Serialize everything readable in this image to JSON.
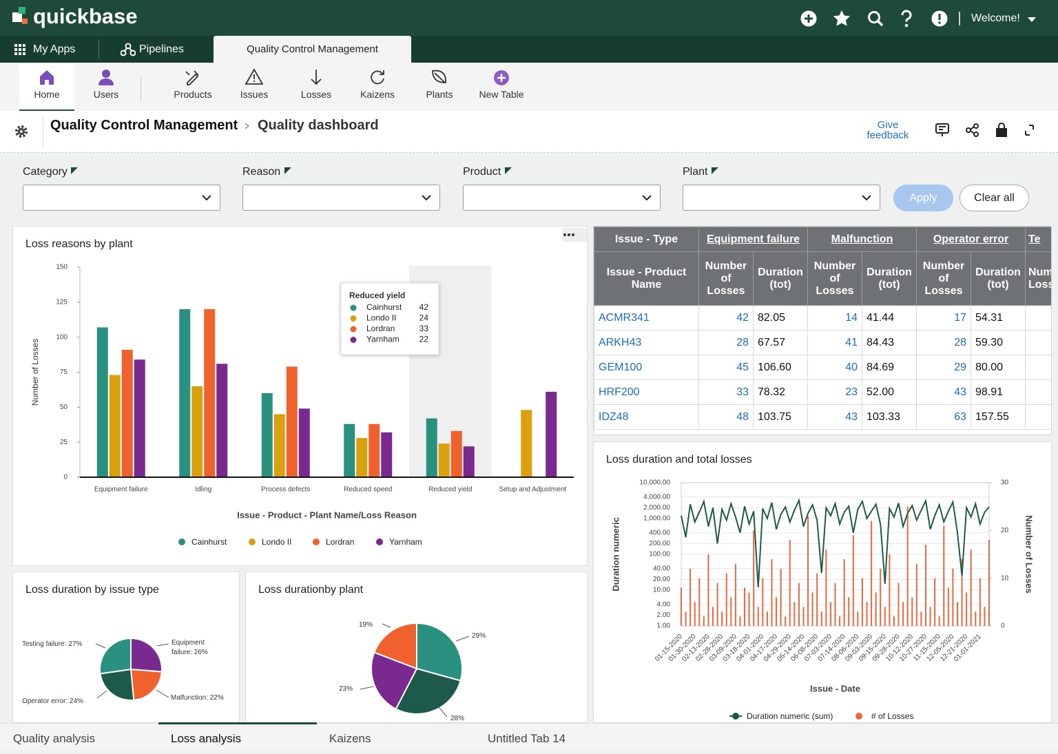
{
  "header": {
    "logo": "quickbase",
    "welcome": "Welcome!"
  },
  "nav": {
    "tabs": [
      "My Apps",
      "Pipelines",
      "Quality Control Management"
    ]
  },
  "toolbar": {
    "items": [
      "Home",
      "Users",
      "Products",
      "Issues",
      "Losses",
      "Kaizens",
      "Plants",
      "New Table"
    ]
  },
  "breadcrumb": {
    "app": "Quality Control Management",
    "page": "Quality dashboard",
    "feedback": "Give feedback"
  },
  "filters": {
    "labels": [
      "Category",
      "Reason",
      "Product",
      "Plant"
    ],
    "apply": "Apply",
    "clear": "Clear all"
  },
  "table": {
    "type_header": "Issue - Type",
    "types": [
      "Equipment failure",
      "Malfunction",
      "Operator error",
      "Te"
    ],
    "product_header": "Issue - Product Name",
    "metric_headers": [
      "Number of Losses",
      "Duration (tot)"
    ],
    "rows": [
      [
        "ACMR341",
        "42",
        "82.05",
        "14",
        "41.44",
        "17",
        "54.31"
      ],
      [
        "ARKH43",
        "28",
        "67.57",
        "41",
        "84.43",
        "28",
        "59.30"
      ],
      [
        "GEM100",
        "45",
        "106.60",
        "40",
        "84.69",
        "29",
        "80.00"
      ],
      [
        "HRF200",
        "33",
        "78.32",
        "23",
        "52.00",
        "43",
        "98.91"
      ],
      [
        "IDZ48",
        "48",
        "103.75",
        "43",
        "103.33",
        "63",
        "157.55"
      ]
    ]
  },
  "chart_data": [
    {
      "type": "bar",
      "title": "Loss reasons by plant",
      "x_label": "Issue - Product - Plant Name/Loss Reason",
      "y_label": "Number of Losses",
      "categories": [
        "Equipment failure",
        "Idling",
        "Process defects",
        "Reduced speed",
        "Reduced yield",
        "Setup and Adjustment"
      ],
      "series": [
        {
          "name": "Cainhurst",
          "color": "#2a9080",
          "values": [
            107,
            120,
            60,
            38,
            42,
            null
          ]
        },
        {
          "name": "Londo II",
          "color": "#d9a10e",
          "values": [
            73,
            65,
            45,
            28,
            24,
            48
          ]
        },
        {
          "name": "Lordran",
          "color": "#f0622d",
          "values": [
            91,
            120,
            79,
            38,
            33,
            null
          ]
        },
        {
          "name": "Yarnham",
          "color": "#7a2a8e",
          "values": [
            84,
            81,
            49,
            32,
            22,
            61
          ]
        }
      ],
      "ylim": [
        0,
        150
      ],
      "yticks": [
        0,
        25,
        50,
        75,
        100,
        125,
        150
      ],
      "grid": false
    },
    {
      "type": "pie",
      "title": "Loss duration by issue type",
      "values": [
        26,
        22,
        24,
        27
      ],
      "value_labels": [
        "Equipment failure: 26%",
        "Malfunction: 22%",
        "Operator error: 24%",
        "Testing failure: 27%"
      ],
      "colors": [
        "#7a2a8e",
        "#f0622d",
        "#1e5a4c",
        "#2a9080"
      ]
    },
    {
      "type": "pie",
      "title": "Loss durationby plant",
      "values": [
        29,
        28,
        23,
        19
      ],
      "value_labels": [
        "29%",
        "28%",
        "23%",
        "19%"
      ],
      "colors": [
        "#2a9080",
        "#1e5a4c",
        "#7a2a8e",
        "#f0622d"
      ]
    },
    {
      "type": "line",
      "title": "Loss duration and total losses",
      "x_label": "Issue - Date",
      "y_label": "Duration numeric",
      "y2_label": "Number of Losses",
      "categories": [
        "01-15-2020",
        null,
        null,
        "01-30-2020",
        null,
        null,
        "02-13-2020",
        null,
        null,
        "02-28-2020",
        null,
        null,
        "03-09-2020",
        null,
        null,
        "03-18-2020",
        null,
        null,
        "04-01-2020",
        null,
        null,
        "04-17-2020",
        null,
        null,
        "04-29-2020",
        null,
        null,
        "05-14-2020",
        null,
        null,
        "06-08-2020",
        null,
        null,
        "07-03-2020",
        null,
        null,
        "07-14-2020",
        null,
        null,
        "08-06-2020",
        null,
        null,
        "09-03-2020",
        null,
        null,
        "09-15-2020",
        null,
        null,
        "09-28-2020",
        null,
        null,
        "10-12-2020",
        null,
        null,
        "10-27-2020",
        null,
        null,
        "11-15-2020",
        null,
        null,
        "12-05-2020",
        null,
        null,
        "12-21-2020",
        null,
        null,
        "01-01-2021",
        null,
        null
      ],
      "series": [
        {
          "name": "Duration numeric (sum)",
          "color": "#1e5a45",
          "type": "line",
          "values": [
            1200,
            300,
            2500,
            800,
            1500,
            3000,
            600,
            2000,
            200,
            1800,
            900,
            2600,
            1100,
            400,
            2200,
            700,
            1600,
            12,
            1900,
            1000,
            2800,
            500,
            1300,
            2100,
            800,
            1700,
            3200,
            600,
            1400,
            2400,
            900,
            30,
            2000,
            1200,
            2600,
            700,
            1500,
            2200,
            400,
            1800,
            3000,
            1000,
            1600,
            2500,
            700,
            15,
            1900,
            1100,
            2700,
            600,
            1400,
            2300,
            900,
            1700,
            3100,
            500,
            1200,
            2400,
            800,
            1600,
            2900,
            400,
            25,
            2000,
            1100,
            2600,
            700,
            1500,
            2100
          ]
        },
        {
          "name": "# of Losses",
          "color": "#e8683f",
          "type": "bar",
          "axis": "y2",
          "values": [
            8,
            3,
            12,
            5,
            10,
            2,
            15,
            4,
            9,
            3,
            11,
            6,
            13,
            2,
            8,
            7,
            20,
            4,
            10,
            3,
            14,
            6,
            12,
            2,
            18,
            5,
            9,
            4,
            23,
            7,
            11,
            3,
            16,
            5,
            9,
            2,
            14,
            6,
            19,
            3,
            10,
            5,
            22,
            7,
            12,
            4,
            15,
            2,
            9,
            5,
            25,
            6,
            13,
            3,
            17,
            4,
            10,
            2,
            21,
            8,
            12,
            5,
            14,
            7,
            16,
            3,
            10,
            4,
            18
          ]
        }
      ],
      "log_y": true,
      "ylim": [
        1,
        10000
      ],
      "yticks": [
        {
          "value": 1,
          "label": "1.00"
        },
        {
          "value": 2,
          "label": "2.00"
        },
        {
          "value": 4,
          "label": "4.00"
        },
        {
          "value": 10,
          "label": "10.00"
        },
        {
          "value": 20,
          "label": "20.00"
        },
        {
          "value": 40,
          "label": "40.00"
        },
        {
          "value": 100,
          "label": "100.00"
        },
        {
          "value": 200,
          "label": "200.00"
        },
        {
          "value": 400,
          "label": "400.00"
        },
        {
          "value": 1000,
          "label": "1,000.00"
        },
        {
          "value": 2000,
          "label": "2,000.00"
        },
        {
          "value": 4000,
          "label": "4,000.00"
        },
        {
          "value": 10000,
          "label": "10,000.00"
        }
      ],
      "y2lim": [
        0,
        30
      ],
      "y2ticks": [
        0,
        10,
        20,
        30
      ],
      "grid": true
    }
  ],
  "tabs": [
    "Quality analysis",
    "Loss analysis",
    "Kaizens",
    "Untitled Tab 14"
  ]
}
